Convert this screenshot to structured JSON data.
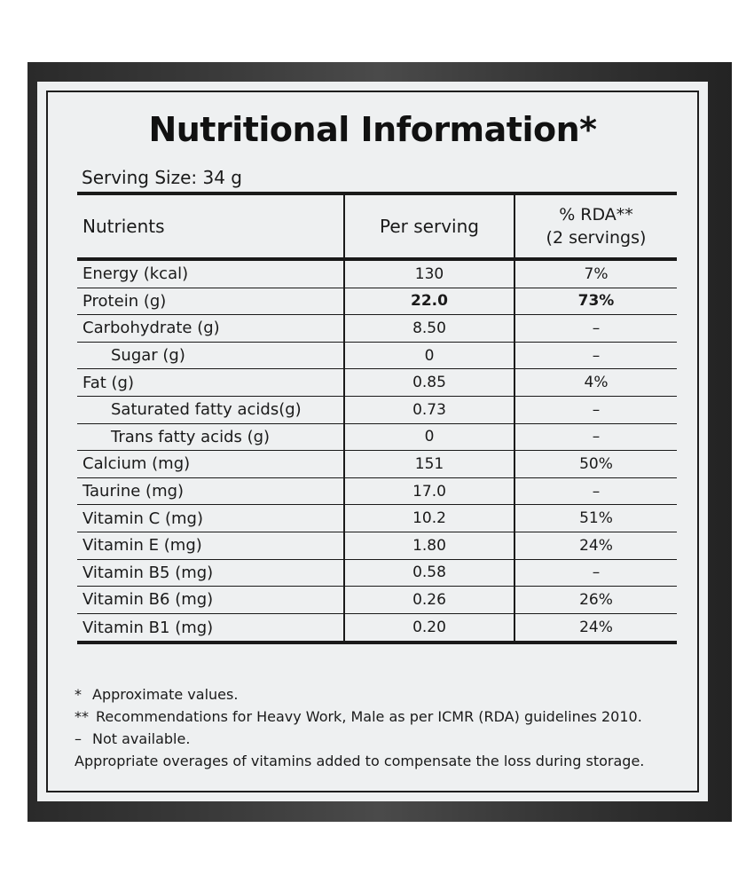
{
  "title": "Nutritional Information*",
  "serving_size": "Serving Size: 34 g",
  "table": {
    "headers": {
      "nutrients": "Nutrients",
      "per_serving": "Per serving",
      "rda_line1": "% RDA**",
      "rda_line2": "(2 servings)"
    },
    "rows": [
      {
        "nutrient": "Energy (kcal)",
        "per_serving": "130",
        "rda": "7%",
        "indent": false,
        "bold": false
      },
      {
        "nutrient": "Protein (g)",
        "per_serving": "22.0",
        "rda": "73%",
        "indent": false,
        "bold": true
      },
      {
        "nutrient": "Carbohydrate (g)",
        "per_serving": "8.50",
        "rda": "–",
        "indent": false,
        "bold": false
      },
      {
        "nutrient": "Sugar (g)",
        "per_serving": "0",
        "rda": "–",
        "indent": true,
        "bold": false
      },
      {
        "nutrient": "Fat (g)",
        "per_serving": "0.85",
        "rda": "4%",
        "indent": false,
        "bold": false
      },
      {
        "nutrient": "Saturated fatty acids(g)",
        "per_serving": "0.73",
        "rda": "–",
        "indent": true,
        "bold": false
      },
      {
        "nutrient": "Trans fatty acids (g)",
        "per_serving": "0",
        "rda": "–",
        "indent": true,
        "bold": false
      },
      {
        "nutrient": "Calcium (mg)",
        "per_serving": "151",
        "rda": "50%",
        "indent": false,
        "bold": false
      },
      {
        "nutrient": "Taurine (mg)",
        "per_serving": "17.0",
        "rda": "–",
        "indent": false,
        "bold": false
      },
      {
        "nutrient": "Vitamin C (mg)",
        "per_serving": "10.2",
        "rda": "51%",
        "indent": false,
        "bold": false
      },
      {
        "nutrient": "Vitamin E (mg)",
        "per_serving": "1.80",
        "rda": "24%",
        "indent": false,
        "bold": false
      },
      {
        "nutrient": "Vitamin B5 (mg)",
        "per_serving": "0.58",
        "rda": "–",
        "indent": false,
        "bold": false
      },
      {
        "nutrient": "Vitamin B6 (mg)",
        "per_serving": "0.26",
        "rda": "26%",
        "indent": false,
        "bold": false
      },
      {
        "nutrient": "Vitamin B1 (mg)",
        "per_serving": "0.20",
        "rda": "24%",
        "indent": false,
        "bold": false
      }
    ]
  },
  "notes": [
    {
      "symbol": "*",
      "text": "Approximate values."
    },
    {
      "symbol": "**",
      "text": "Recommendations for Heavy Work, Male as per ICMR (RDA) guidelines 2010."
    },
    {
      "symbol": "–",
      "text": "Not available."
    },
    {
      "symbol": "",
      "text": "Appropriate overages of vitamins added to compensate the loss during storage."
    }
  ],
  "colors": {
    "label_background": "#eef0f1",
    "container_dark": "#2a2a2a",
    "ink": "#1a1a1a"
  }
}
